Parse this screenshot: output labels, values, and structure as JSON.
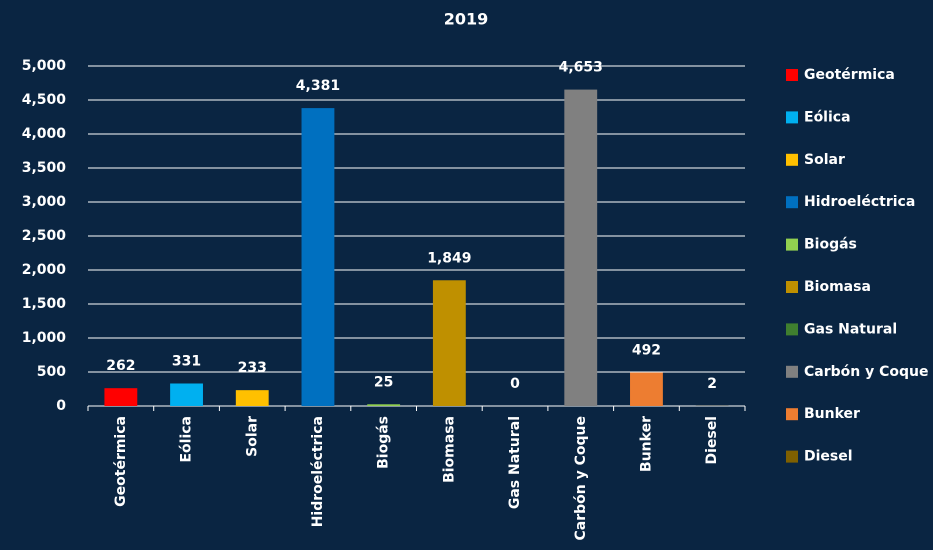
{
  "chart_data": {
    "type": "bar",
    "title": "2019",
    "categories": [
      "Geotérmica",
      "Eólica",
      "Solar",
      "Hidroeléctrica",
      "Biogás",
      "Biomasa",
      "Gas Natural",
      "Carbón y Coque",
      "Bunker",
      "Diesel"
    ],
    "values": [
      262,
      331,
      233,
      4381,
      25,
      1849,
      0,
      4653,
      492,
      2
    ],
    "value_labels": [
      "262",
      "331",
      "233",
      "4,381",
      "25",
      "1,849",
      "0",
      "4,653",
      "492",
      "2"
    ],
    "colors": [
      "#ff0000",
      "#00b0f0",
      "#ffc000",
      "#0070c0",
      "#92d050",
      "#bf9000",
      "#3f7f2f",
      "#808080",
      "#ed7d31",
      "#7f6000"
    ],
    "ylim": [
      0,
      5000
    ],
    "yticks": [
      0,
      500,
      {
        "value": 1000,
        "label": "1,000"
      },
      {
        "value": 1500,
        "label": "1,500"
      },
      {
        "value": 2000,
        "label": "2,000"
      },
      {
        "value": 2500,
        "label": "2,500"
      },
      {
        "value": 3000,
        "label": "3,000"
      },
      {
        "value": 3500,
        "label": "3,500"
      },
      {
        "value": 4000,
        "label": "4,000"
      },
      {
        "value": 4500,
        "label": "4,500"
      },
      {
        "value": 5000,
        "label": "5,000"
      }
    ],
    "grid": true,
    "legend": "right"
  }
}
